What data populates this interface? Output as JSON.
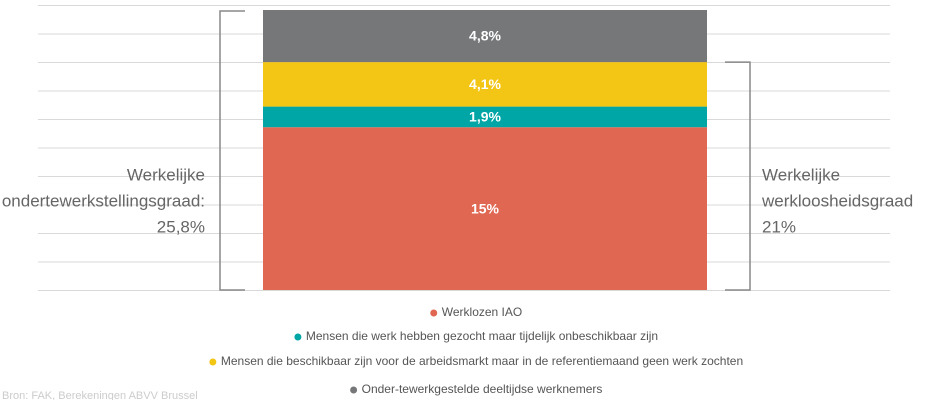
{
  "chart_data": {
    "type": "stacked_bar",
    "series": [
      {
        "name": "Werklozen IAO",
        "color": "#e06752",
        "values": [
          15
        ],
        "value_labels": [
          "15%"
        ]
      },
      {
        "name": "Mensen die werk hebben gezocht maar tijdelijk onbeschikbaar zijn",
        "color": "#00a5a5",
        "values": [
          1.9
        ],
        "value_labels": [
          "1,9%"
        ]
      },
      {
        "name": "Mensen die beschikbaar zijn voor de arbeidsmarkt maar in de referentiemaand geen werk zochten",
        "color": "#f3c515",
        "values": [
          4.1
        ],
        "value_labels": [
          "4,1%"
        ]
      },
      {
        "name": "Onder-tewerkgestelde deeltijdse werknemers",
        "color": "#757779",
        "values": [
          4.8
        ],
        "value_labels": [
          "4,8%"
        ]
      }
    ],
    "ylim": [
      0,
      25.8
    ],
    "annotations": [
      {
        "lines": [
          "Werkelijke",
          "ondertewerkstellingsgraad:",
          "25,8%"
        ]
      },
      {
        "lines": [
          "Werkelijke",
          "werkloosheidsgraad",
          "21%"
        ]
      }
    ],
    "source": "Bron: FAK, Berekeningen ABVV Brussel"
  }
}
